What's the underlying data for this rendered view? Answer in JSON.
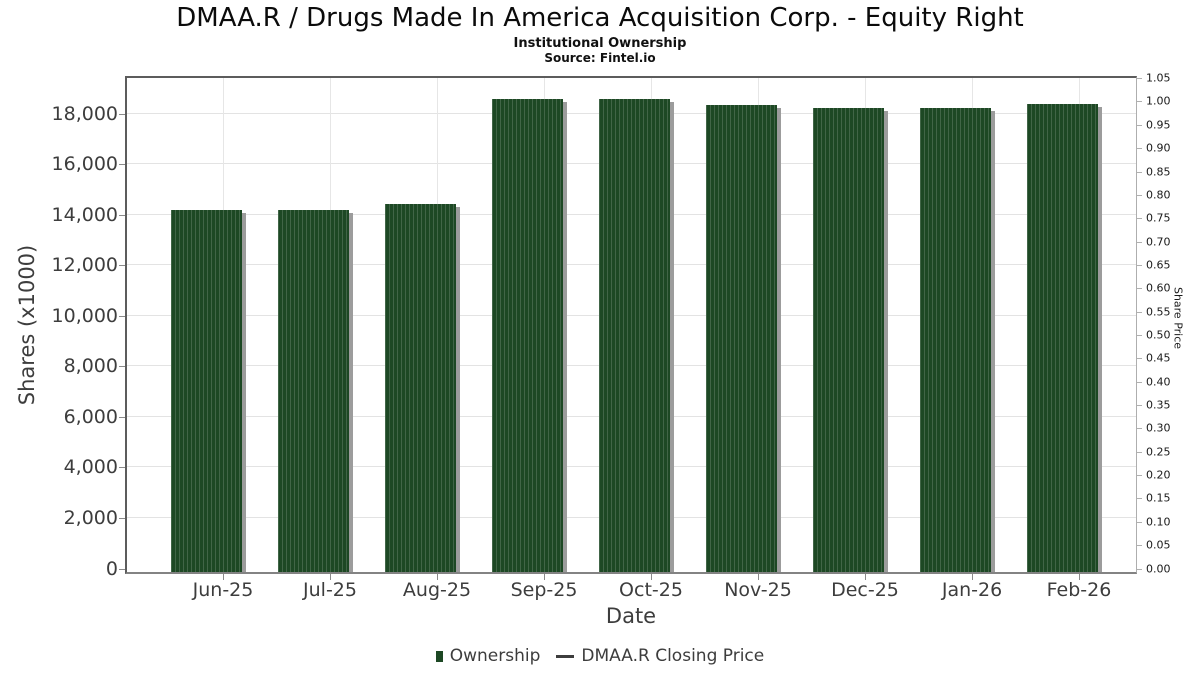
{
  "title": "DMAA.R / Drugs Made In America Acquisition Corp. - Equity Right",
  "subtitle": "Institutional Ownership",
  "source": "Source: Fintel.io",
  "chart_data": {
    "type": "bar",
    "title": "DMAA.R / Drugs Made In America Acquisition Corp. - Equity Right",
    "subtitle": "Institutional Ownership",
    "source": "Source: Fintel.io",
    "categories": [
      "Jun-25",
      "Jul-25",
      "Aug-25",
      "Sep-25",
      "Oct-25",
      "Nov-25",
      "Dec-25",
      "Jan-26",
      "Feb-26"
    ],
    "series": [
      {
        "name": "Ownership",
        "type": "bar",
        "color": "#1d4824",
        "values": [
          14100,
          14100,
          14330,
          18480,
          18480,
          18270,
          18150,
          18150,
          18320
        ]
      },
      {
        "name": "DMAA.R Closing Price",
        "type": "line",
        "color": "#3d3d3d",
        "values": []
      }
    ],
    "xlabel": "Date",
    "ylabel_left": "Shares (x1000)",
    "ylabel_right": "Share Price",
    "y_left": {
      "min": 0,
      "max": 18000,
      "step": 2000,
      "tick_labels": [
        "0",
        "2,000",
        "4,000",
        "6,000",
        "8,000",
        "10,000",
        "12,000",
        "14,000",
        "16,000",
        "18,000"
      ]
    },
    "y_right": {
      "min": 0,
      "max": 1.05,
      "step": 0.05,
      "tick_labels": [
        "0.00",
        "0.05",
        "0.10",
        "0.15",
        "0.20",
        "0.25",
        "0.30",
        "0.35",
        "0.40",
        "0.45",
        "0.50",
        "0.55",
        "0.60",
        "0.65",
        "0.70",
        "0.75",
        "0.80",
        "0.85",
        "0.90",
        "0.95",
        "1.00",
        "1.05"
      ]
    },
    "grid": true,
    "legend_position": "bottom"
  },
  "legend": {
    "items": [
      {
        "label": "Ownership",
        "marker": "square",
        "color": "#1d4824"
      },
      {
        "label": "DMAA.R Closing Price",
        "marker": "line",
        "color": "#3d3d3d"
      }
    ]
  },
  "colors": {
    "bar": "#1d4824",
    "bar_shadow": "#9c9c9c",
    "grid": "#e3e3e3",
    "axis_text": "#3d3d3d",
    "tick": "#8a8a8a"
  }
}
